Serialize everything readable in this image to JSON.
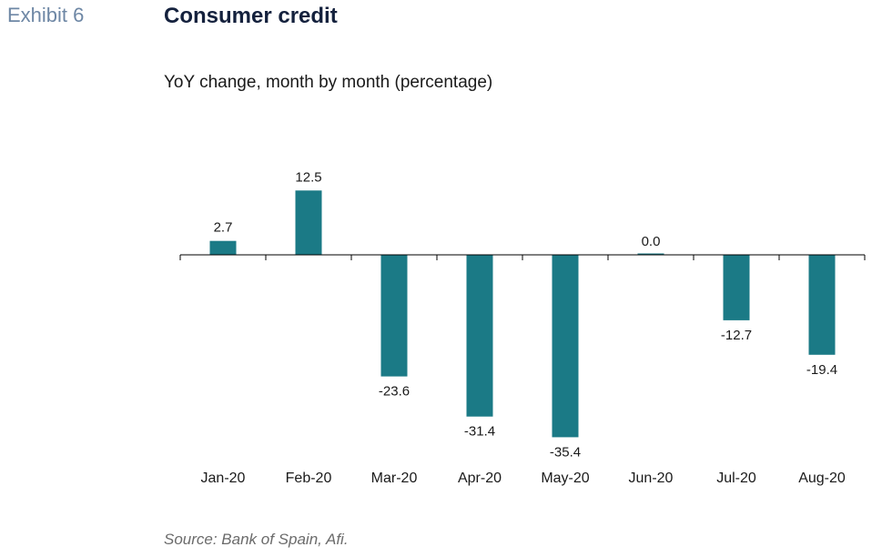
{
  "exhibit_label": "Exhibit 6",
  "header": {
    "title": "Consumer credit",
    "subtitle": "YoY change, month by month (percentage)"
  },
  "source": "Source: Bank of Spain, Afi.",
  "colors": {
    "bar": "#1b7a86",
    "axis": "#000000",
    "label": "#1a1a1a"
  },
  "chart_data": {
    "type": "bar",
    "title": "Consumer credit",
    "subtitle": "YoY change, month by month (percentage)",
    "categories": [
      "Jan-20",
      "Feb-20",
      "Mar-20",
      "Apr-20",
      "May-20",
      "Jun-20",
      "Jul-20",
      "Aug-20"
    ],
    "values": [
      2.7,
      12.5,
      -23.6,
      -31.4,
      -35.4,
      0.0,
      -12.7,
      -19.4
    ],
    "data_labels": [
      "2.7",
      "12.5",
      "-23.6",
      "-31.4",
      "-35.4",
      "0.0",
      "-12.7",
      "-19.4"
    ],
    "xlabel": "",
    "ylabel": "",
    "ylim": [
      -40,
      20
    ],
    "grid": false,
    "legend": "none"
  }
}
